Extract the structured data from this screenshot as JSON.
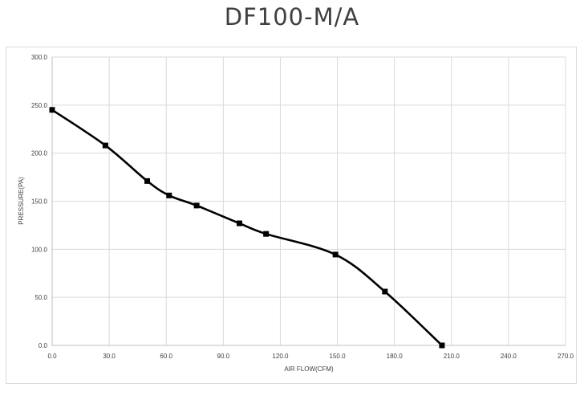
{
  "chart_data": {
    "type": "line",
    "title": "DF100-M/A",
    "xlabel": "AIR FLOW(CFM)",
    "ylabel": "PRESSURE(PA)",
    "xlim": [
      0,
      270
    ],
    "ylim": [
      0,
      300
    ],
    "x_ticks": [
      "0.0",
      "30.0",
      "60.0",
      "90.0",
      "120.0",
      "150.0",
      "180.0",
      "210.0",
      "240.0",
      "270.0"
    ],
    "y_ticks": [
      "0.0",
      "50.0",
      "100.0",
      "150.0",
      "200.0",
      "250.0",
      "300.0"
    ],
    "grid": true,
    "marker": "square",
    "series": [
      {
        "color": "#000000",
        "points": [
          {
            "x": 0,
            "y": 245
          },
          {
            "x": 28,
            "y": 208
          },
          {
            "x": 50,
            "y": 171
          },
          {
            "x": 61.5,
            "y": 156
          },
          {
            "x": 76,
            "y": 145.5
          },
          {
            "x": 98.5,
            "y": 127
          },
          {
            "x": 112.5,
            "y": 116
          },
          {
            "x": 149,
            "y": 94.5
          },
          {
            "x": 175,
            "y": 56
          },
          {
            "x": 205,
            "y": 0
          }
        ]
      }
    ]
  }
}
